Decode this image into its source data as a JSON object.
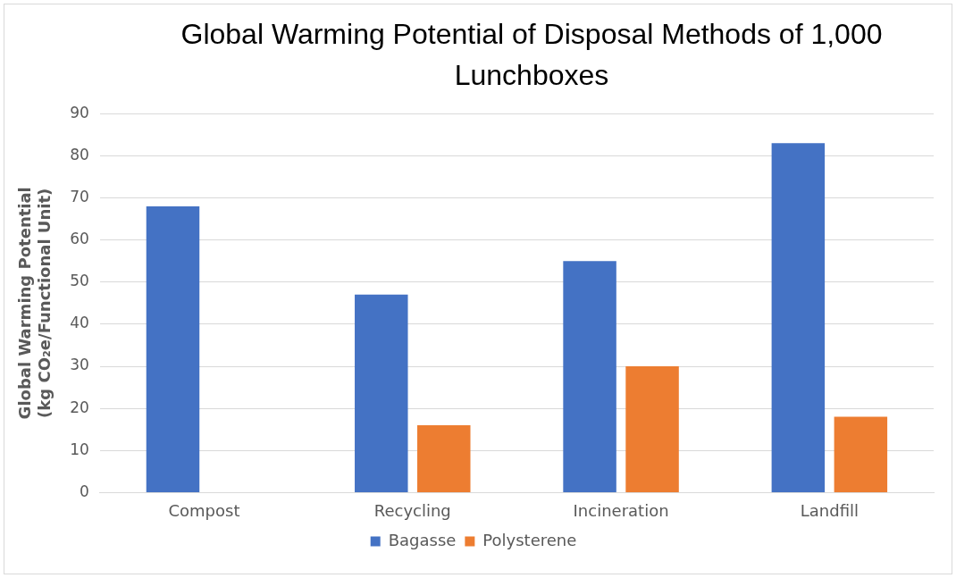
{
  "chart_data": {
    "type": "bar",
    "title": "Global Warming Potential of Disposal Methods of 1,000 Lunchboxes",
    "ylabel": "Global Warming Potential\n(kg CO₂e/Functional Unit)",
    "categories": [
      "Compost",
      "Recycling",
      "Incineration",
      "Landfill"
    ],
    "series": [
      {
        "name": "Bagasse",
        "color": "#4472c4",
        "values": [
          68,
          47,
          55,
          83
        ]
      },
      {
        "name": "Polysterene",
        "color": "#ed7d31",
        "values": [
          null,
          16,
          30,
          18
        ]
      }
    ],
    "ylim": [
      0,
      90
    ],
    "yticks": [
      0,
      10,
      20,
      30,
      40,
      50,
      60,
      70,
      80,
      90
    ],
    "grid": "y",
    "legend": "bottom"
  }
}
